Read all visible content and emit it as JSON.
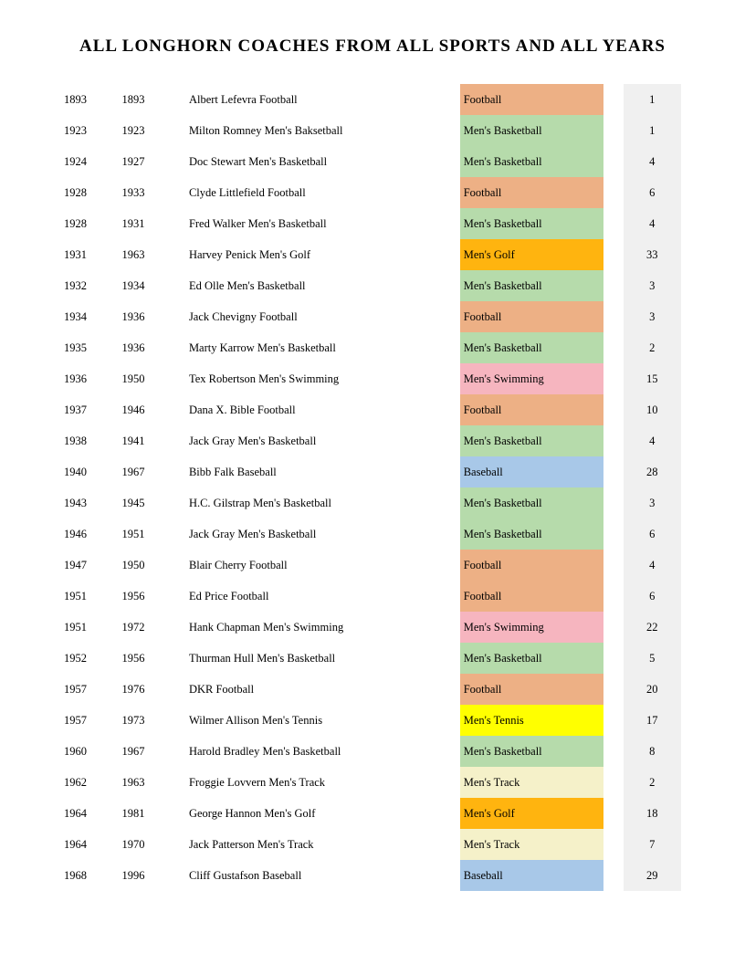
{
  "title": "ALL LONGHORN COACHES FROM ALL SPORTS AND ALL YEARS",
  "colors": {
    "Football": "#edb085",
    "Men's Basketball": "#b6dbab",
    "Men's Golf": "#ffb40f",
    "Men's Swimming": "#f6b5bf",
    "Baseball": "#a8c8e8",
    "Men's Tennis": "#ffff00",
    "Men's Track": "#f5f1c9",
    "years_bg": "#f0f0f0",
    "text": "#000000",
    "background": "#ffffff"
  },
  "rows": [
    {
      "start": "1893",
      "end": "1893",
      "name": "Albert Lefevra Football",
      "sport": "Football",
      "years": "1"
    },
    {
      "start": "1923",
      "end": "1923",
      "name": "Milton Romney Men's Baksetball",
      "sport": "Men's Basketball",
      "years": "1"
    },
    {
      "start": "1924",
      "end": "1927",
      "name": "Doc Stewart Men's Basketball",
      "sport": "Men's Basketball",
      "years": "4"
    },
    {
      "start": "1928",
      "end": "1933",
      "name": "Clyde Littlefield Football",
      "sport": "Football",
      "years": "6"
    },
    {
      "start": "1928",
      "end": "1931",
      "name": "Fred Walker Men's Basketball",
      "sport": "Men's Basketball",
      "years": "4"
    },
    {
      "start": "1931",
      "end": "1963",
      "name": "Harvey Penick Men's Golf",
      "sport": "Men's Golf",
      "years": "33"
    },
    {
      "start": "1932",
      "end": "1934",
      "name": "Ed Olle Men's Basketball",
      "sport": "Men's Basketball",
      "years": "3"
    },
    {
      "start": "1934",
      "end": "1936",
      "name": "Jack Chevigny Football",
      "sport": "Football",
      "years": "3"
    },
    {
      "start": "1935",
      "end": "1936",
      "name": "Marty Karrow Men's Basketball",
      "sport": "Men's Basketball",
      "years": "2"
    },
    {
      "start": "1936",
      "end": "1950",
      "name": "Tex Robertson Men's Swimming",
      "sport": "Men's Swimming",
      "years": "15"
    },
    {
      "start": "1937",
      "end": "1946",
      "name": "Dana X. Bible Football",
      "sport": "Football",
      "years": "10"
    },
    {
      "start": "1938",
      "end": "1941",
      "name": "Jack Gray Men's Basketball",
      "sport": "Men's Basketball",
      "years": "4"
    },
    {
      "start": "1940",
      "end": "1967",
      "name": "Bibb Falk Baseball",
      "sport": "Baseball",
      "years": "28"
    },
    {
      "start": "1943",
      "end": "1945",
      "name": "H.C. Gilstrap Men's Basketball",
      "sport": "Men's Basketball",
      "years": "3"
    },
    {
      "start": "1946",
      "end": "1951",
      "name": "Jack Gray Men's Basketball",
      "sport": "Men's Basketball",
      "years": "6"
    },
    {
      "start": "1947",
      "end": "1950",
      "name": "Blair Cherry Football",
      "sport": "Football",
      "years": "4"
    },
    {
      "start": "1951",
      "end": "1956",
      "name": "Ed Price Football",
      "sport": "Football",
      "years": "6"
    },
    {
      "start": "1951",
      "end": "1972",
      "name": "Hank Chapman Men's Swimming",
      "sport": "Men's Swimming",
      "years": "22"
    },
    {
      "start": "1952",
      "end": "1956",
      "name": "Thurman Hull Men's Basketball",
      "sport": "Men's Basketball",
      "years": "5"
    },
    {
      "start": "1957",
      "end": "1976",
      "name": "DKR Football",
      "sport": "Football",
      "years": "20"
    },
    {
      "start": "1957",
      "end": "1973",
      "name": "Wilmer Allison Men's Tennis",
      "sport": "Men's Tennis",
      "years": "17"
    },
    {
      "start": "1960",
      "end": "1967",
      "name": "Harold Bradley Men's Basketball",
      "sport": "Men's Basketball",
      "years": "8"
    },
    {
      "start": "1962",
      "end": "1963",
      "name": "Froggie Lovvern Men's Track",
      "sport": "Men's Track",
      "years": "2"
    },
    {
      "start": "1964",
      "end": "1981",
      "name": "George Hannon Men's Golf",
      "sport": "Men's Golf",
      "years": "18"
    },
    {
      "start": "1964",
      "end": "1970",
      "name": "Jack Patterson Men's Track",
      "sport": "Men's Track",
      "years": "7"
    },
    {
      "start": "1968",
      "end": "1996",
      "name": "Cliff Gustafson Baseball",
      "sport": "Baseball",
      "years": "29"
    }
  ]
}
